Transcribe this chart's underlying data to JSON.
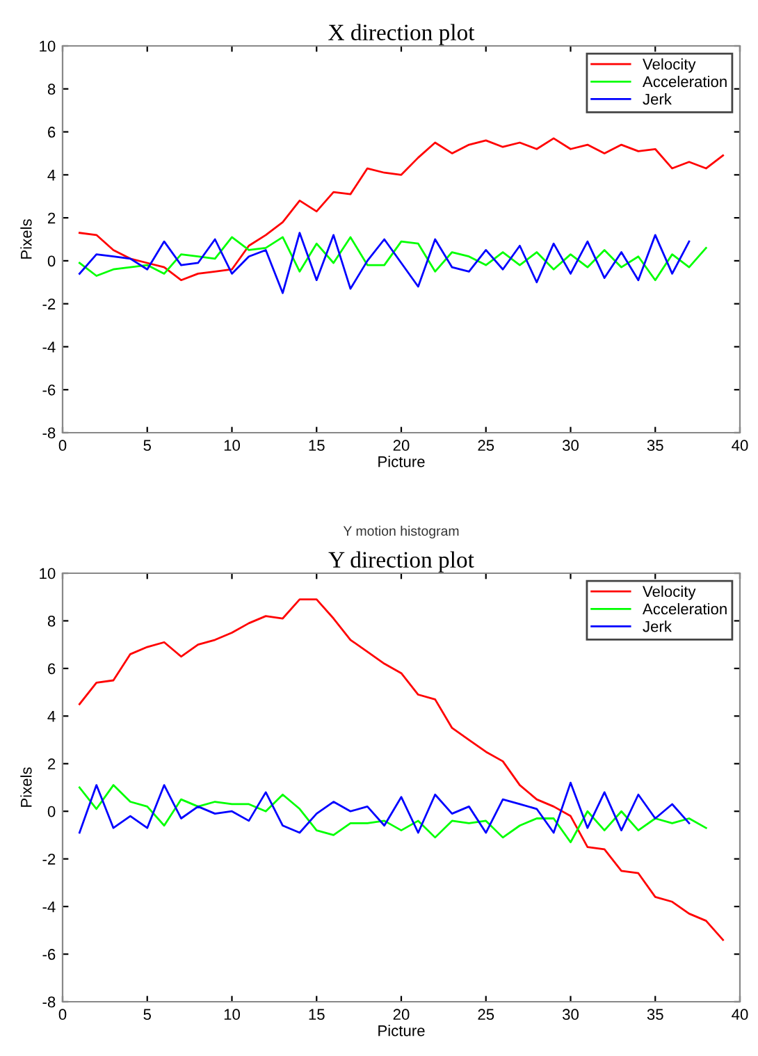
{
  "chart_data": [
    {
      "type": "line",
      "title": "X direction plot",
      "xlabel": "Picture",
      "ylabel": "Pixels",
      "xlim": [
        0,
        40
      ],
      "ylim": [
        -8,
        10
      ],
      "xticks": [
        0,
        5,
        10,
        15,
        20,
        25,
        30,
        35,
        40
      ],
      "yticks": [
        -8,
        -6,
        -4,
        -2,
        0,
        2,
        4,
        6,
        8,
        10
      ],
      "grid": false,
      "legend": "top right",
      "series": [
        {
          "name": "Velocity",
          "color": "#ff0000",
          "x": [
            1,
            2,
            3,
            4,
            5,
            6,
            7,
            8,
            9,
            10,
            11,
            12,
            13,
            14,
            15,
            16,
            17,
            18,
            19,
            20,
            21,
            22,
            23,
            24,
            25,
            26,
            27,
            28,
            29,
            30,
            31,
            32,
            33,
            34,
            35,
            36,
            37,
            38,
            39
          ],
          "values": [
            1.3,
            1.2,
            0.5,
            0.1,
            -0.1,
            -0.3,
            -0.9,
            -0.6,
            -0.5,
            -0.4,
            0.7,
            1.2,
            1.8,
            2.8,
            2.3,
            3.2,
            3.1,
            4.3,
            4.1,
            4.0,
            4.8,
            5.5,
            5.0,
            5.4,
            5.6,
            5.3,
            5.5,
            5.2,
            5.7,
            5.2,
            5.4,
            5.0,
            5.4,
            5.1,
            5.2,
            4.3,
            4.6,
            4.3,
            4.9
          ]
        },
        {
          "name": "Acceleration",
          "color": "#00ff00",
          "x": [
            1,
            2,
            3,
            4,
            5,
            6,
            7,
            8,
            9,
            10,
            11,
            12,
            13,
            14,
            15,
            16,
            17,
            18,
            19,
            20,
            21,
            22,
            23,
            24,
            25,
            26,
            27,
            28,
            29,
            30,
            31,
            32,
            33,
            34,
            35,
            36,
            37,
            38
          ],
          "values": [
            -0.1,
            -0.7,
            -0.4,
            -0.3,
            -0.2,
            -0.6,
            0.3,
            0.2,
            0.1,
            1.1,
            0.5,
            0.6,
            1.1,
            -0.5,
            0.8,
            -0.1,
            1.1,
            -0.2,
            -0.2,
            0.9,
            0.8,
            -0.5,
            0.4,
            0.2,
            -0.2,
            0.4,
            -0.2,
            0.4,
            -0.4,
            0.3,
            -0.3,
            0.5,
            -0.3,
            0.2,
            -0.9,
            0.3,
            -0.3,
            0.6
          ]
        },
        {
          "name": "Jerk",
          "color": "#0000ff",
          "x": [
            1,
            2,
            3,
            4,
            5,
            6,
            7,
            8,
            9,
            10,
            11,
            12,
            13,
            14,
            15,
            16,
            17,
            18,
            19,
            20,
            21,
            22,
            23,
            24,
            25,
            26,
            27,
            28,
            29,
            30,
            31,
            32,
            33,
            34,
            35,
            36,
            37
          ],
          "values": [
            -0.6,
            0.3,
            0.2,
            0.1,
            -0.4,
            0.9,
            -0.2,
            -0.1,
            1.0,
            -0.6,
            0.2,
            0.5,
            -1.5,
            1.3,
            -0.9,
            1.2,
            -1.3,
            0.0,
            1.0,
            -0.1,
            -1.2,
            1.0,
            -0.3,
            -0.5,
            0.5,
            -0.4,
            0.7,
            -1.0,
            0.8,
            -0.6,
            0.9,
            -0.8,
            0.4,
            -0.9,
            1.2,
            -0.6,
            0.9
          ]
        }
      ]
    },
    {
      "type": "line",
      "title": "Y direction plot",
      "subtitle": "Y motion histogram",
      "xlabel": "Picture",
      "ylabel": "Pixels",
      "xlim": [
        0,
        40
      ],
      "ylim": [
        -8,
        10
      ],
      "xticks": [
        0,
        5,
        10,
        15,
        20,
        25,
        30,
        35,
        40
      ],
      "yticks": [
        -8,
        -6,
        -4,
        -2,
        0,
        2,
        4,
        6,
        8,
        10
      ],
      "grid": false,
      "legend": "top right",
      "series": [
        {
          "name": "Velocity",
          "color": "#ff0000",
          "x": [
            1,
            2,
            3,
            4,
            5,
            6,
            7,
            8,
            9,
            10,
            11,
            12,
            13,
            14,
            15,
            16,
            17,
            18,
            19,
            20,
            21,
            22,
            23,
            24,
            25,
            26,
            27,
            28,
            29,
            30,
            31,
            32,
            33,
            34,
            35,
            36,
            37,
            38,
            39
          ],
          "values": [
            4.5,
            5.4,
            5.5,
            6.6,
            6.9,
            7.1,
            6.5,
            7.0,
            7.2,
            7.5,
            7.9,
            8.2,
            8.1,
            8.9,
            8.9,
            8.1,
            7.2,
            6.7,
            6.2,
            5.8,
            4.9,
            4.7,
            3.5,
            3.0,
            2.5,
            2.1,
            1.1,
            0.5,
            0.2,
            -0.2,
            -1.5,
            -1.6,
            -2.5,
            -2.6,
            -3.6,
            -3.8,
            -4.3,
            -4.6,
            -5.4
          ]
        },
        {
          "name": "Acceleration",
          "color": "#00ff00",
          "x": [
            1,
            2,
            3,
            4,
            5,
            6,
            7,
            8,
            9,
            10,
            11,
            12,
            13,
            14,
            15,
            16,
            17,
            18,
            19,
            20,
            21,
            22,
            23,
            24,
            25,
            26,
            27,
            28,
            29,
            30,
            31,
            32,
            33,
            34,
            35,
            36,
            37,
            38
          ],
          "values": [
            1.0,
            0.1,
            1.1,
            0.4,
            0.2,
            -0.6,
            0.5,
            0.2,
            0.4,
            0.3,
            0.3,
            0.0,
            0.7,
            0.1,
            -0.8,
            -1.0,
            -0.5,
            -0.5,
            -0.4,
            -0.8,
            -0.4,
            -1.1,
            -0.4,
            -0.5,
            -0.4,
            -1.1,
            -0.6,
            -0.3,
            -0.3,
            -1.3,
            0.0,
            -0.8,
            0.0,
            -0.8,
            -0.3,
            -0.5,
            -0.3,
            -0.7
          ]
        },
        {
          "name": "Jerk",
          "color": "#0000ff",
          "x": [
            1,
            2,
            3,
            4,
            5,
            6,
            7,
            8,
            9,
            10,
            11,
            12,
            13,
            14,
            15,
            16,
            17,
            18,
            19,
            20,
            21,
            22,
            23,
            24,
            25,
            26,
            27,
            28,
            29,
            30,
            31,
            32,
            33,
            34,
            35,
            36,
            37
          ],
          "values": [
            -0.9,
            1.1,
            -0.7,
            -0.2,
            -0.7,
            1.1,
            -0.3,
            0.2,
            -0.1,
            0.0,
            -0.4,
            0.8,
            -0.6,
            -0.9,
            -0.1,
            0.4,
            0.0,
            0.2,
            -0.6,
            0.6,
            -0.9,
            0.7,
            -0.1,
            0.2,
            -0.9,
            0.5,
            0.3,
            0.1,
            -0.9,
            1.2,
            -0.7,
            0.8,
            -0.8,
            0.7,
            -0.3,
            0.3,
            -0.5
          ]
        }
      ]
    }
  ]
}
